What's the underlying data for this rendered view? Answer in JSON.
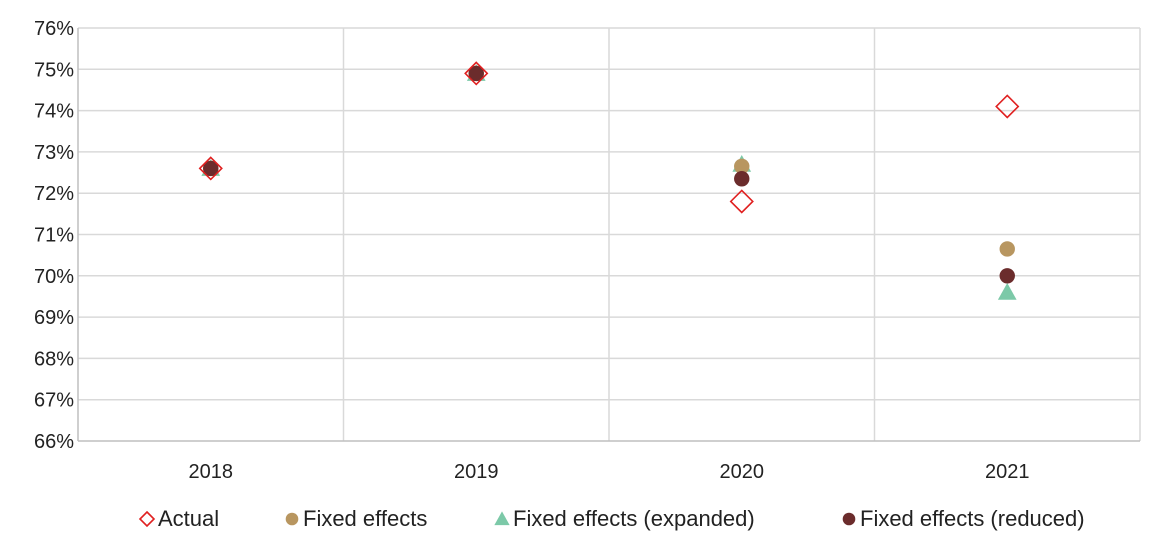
{
  "chart_data": {
    "type": "scatter",
    "categories": [
      "2018",
      "2019",
      "2020",
      "2021"
    ],
    "ylim": [
      66,
      76
    ],
    "yticks": [
      "66%",
      "67%",
      "68%",
      "69%",
      "70%",
      "71%",
      "72%",
      "73%",
      "74%",
      "75%",
      "76%"
    ],
    "grid": true,
    "legend_position": "bottom",
    "series": [
      {
        "name": "Actual",
        "marker": "diamond-open",
        "color": "#e02020",
        "values": [
          72.6,
          74.9,
          71.8,
          74.1
        ]
      },
      {
        "name": "Fixed effects",
        "marker": "circle",
        "color": "#b89660",
        "values": [
          72.6,
          74.9,
          72.65,
          70.65
        ]
      },
      {
        "name": "Fixed effects (expanded)",
        "marker": "triangle",
        "color": "#7cc9a8",
        "values": [
          72.6,
          74.9,
          72.7,
          69.6
        ]
      },
      {
        "name": "Fixed effects (reduced)",
        "marker": "circle",
        "color": "#6b2c2c",
        "values": [
          72.6,
          74.9,
          72.35,
          70.0
        ]
      }
    ]
  }
}
